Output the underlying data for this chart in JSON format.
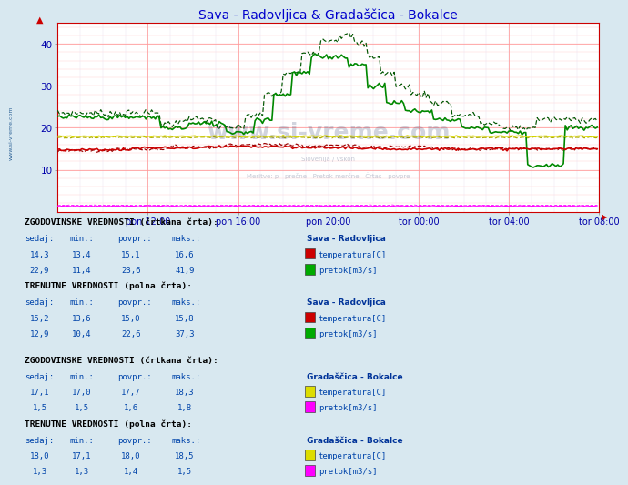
{
  "title": "Sava - Radovljica & Gradaščica - Bokalce",
  "title_color": "#0000cc",
  "bg_color": "#d8e8f0",
  "plot_bg_color": "#ffffff",
  "ylim": [
    0,
    45
  ],
  "yticks": [
    10,
    20,
    30,
    40
  ],
  "n_points": 288,
  "xtick_labels": [
    "pon 12:00",
    "pon 16:00",
    "pon 20:00",
    "tor 00:00",
    "tor 04:00",
    "tor 08:00"
  ],
  "xtick_positions": [
    48,
    96,
    144,
    192,
    240,
    288
  ],
  "watermark": "www.si-vreme.com",
  "watermark_color": "#1a2a5a",
  "side_text": "www.si-vreme.com",
  "sections": [
    {
      "title": "ZGODOVINSKE VREDNOSTI (črtkana črta):",
      "station": "Sava - Radovljica",
      "rows": [
        {
          "sedaj": "14,3",
          "min": "13,4",
          "povpr": "15,1",
          "maks": "16,6",
          "color": "#cc0000",
          "label": "temperatura[C]"
        },
        {
          "sedaj": "22,9",
          "min": "11,4",
          "povpr": "23,6",
          "maks": "41,9",
          "color": "#00aa00",
          "label": "pretok[m3/s]"
        }
      ]
    },
    {
      "title": "TRENUTNE VREDNOSTI (polna črta):",
      "station": "Sava - Radovljica",
      "rows": [
        {
          "sedaj": "15,2",
          "min": "13,6",
          "povpr": "15,0",
          "maks": "15,8",
          "color": "#cc0000",
          "label": "temperatura[C]"
        },
        {
          "sedaj": "12,9",
          "min": "10,4",
          "povpr": "22,6",
          "maks": "37,3",
          "color": "#00aa00",
          "label": "pretok[m3/s]"
        }
      ]
    },
    {
      "title": "ZGODOVINSKE VREDNOSTI (črtkana črta):",
      "station": "Gradaščica - Bokalce",
      "rows": [
        {
          "sedaj": "17,1",
          "min": "17,0",
          "povpr": "17,7",
          "maks": "18,3",
          "color": "#dddd00",
          "label": "temperatura[C]"
        },
        {
          "sedaj": "1,5",
          "min": "1,5",
          "povpr": "1,6",
          "maks": "1,8",
          "color": "#ff00ff",
          "label": "pretok[m3/s]"
        }
      ]
    },
    {
      "title": "TRENUTNE VREDNOSTI (polna črta):",
      "station": "Gradaščica - Bokalce",
      "rows": [
        {
          "sedaj": "18,0",
          "min": "17,1",
          "povpr": "18,0",
          "maks": "18,5",
          "color": "#dddd00",
          "label": "temperatura[C]"
        },
        {
          "sedaj": "1,3",
          "min": "1,3",
          "povpr": "1,4",
          "maks": "1,5",
          "color": "#ff00ff",
          "label": "pretok[m3/s]"
        }
      ]
    }
  ]
}
